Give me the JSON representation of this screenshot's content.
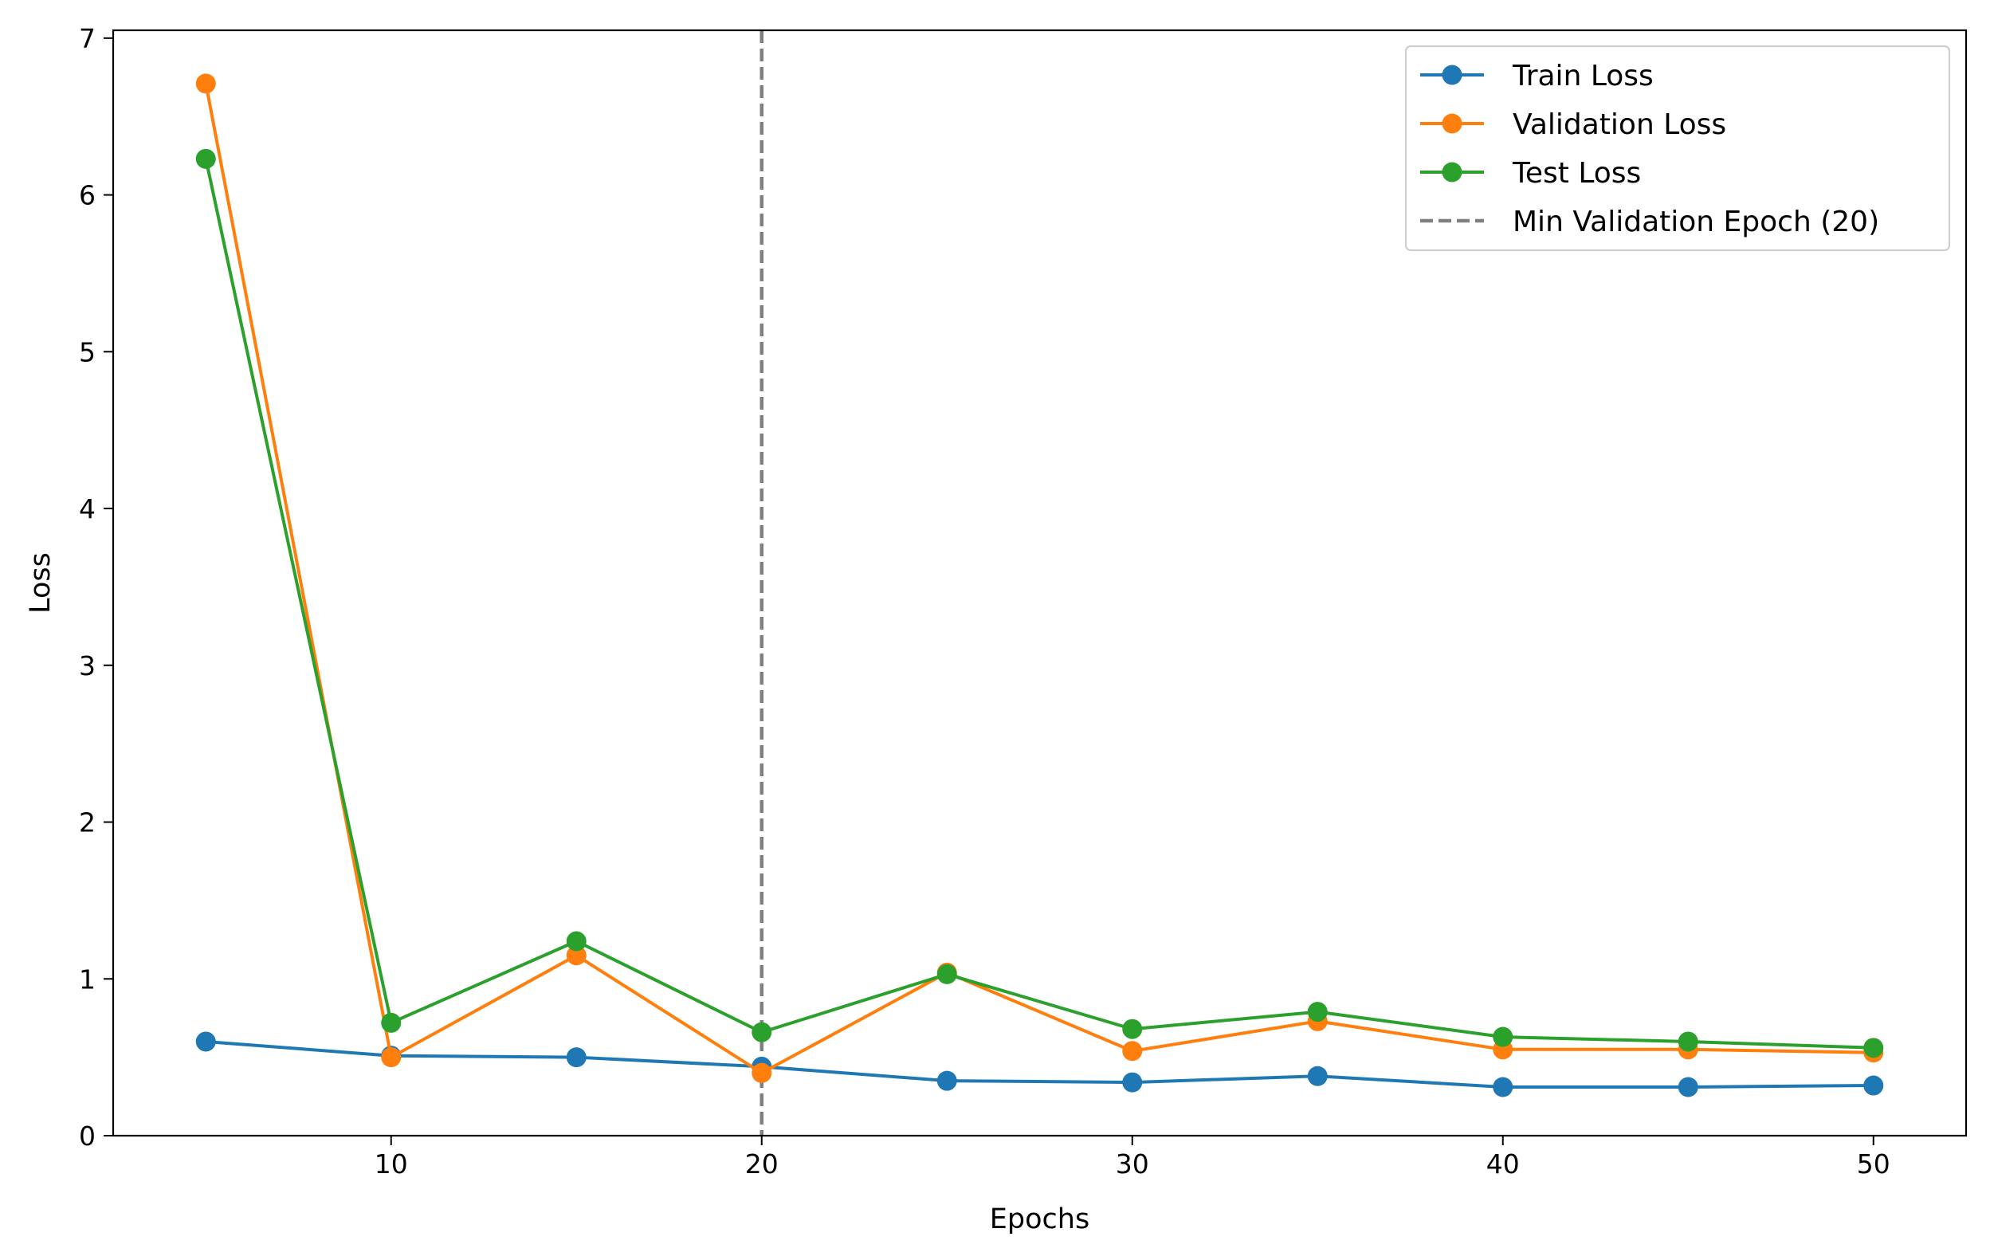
{
  "chart_data": {
    "type": "line",
    "xlabel": "Epochs",
    "ylabel": "Loss",
    "xlim": [
      2.5,
      52.5
    ],
    "ylim": [
      0,
      7.05
    ],
    "xticks": [
      10,
      20,
      30,
      40,
      50
    ],
    "yticks": [
      0,
      1,
      2,
      3,
      4,
      5,
      6,
      7
    ],
    "grid": false,
    "legend_position": "top-right",
    "x": [
      5,
      10,
      15,
      20,
      25,
      30,
      35,
      40,
      45,
      50
    ],
    "series": [
      {
        "name": "Train Loss",
        "color": "#1f77b4",
        "marker": "circle",
        "values": [
          0.6,
          0.51,
          0.5,
          0.44,
          0.35,
          0.34,
          0.38,
          0.31,
          0.31,
          0.32
        ]
      },
      {
        "name": "Validation Loss",
        "color": "#ff7f0e",
        "marker": "circle",
        "values": [
          6.71,
          0.5,
          1.15,
          0.4,
          1.04,
          0.54,
          0.73,
          0.55,
          0.55,
          0.53
        ]
      },
      {
        "name": "Test Loss",
        "color": "#2ca02c",
        "marker": "circle",
        "values": [
          6.23,
          0.72,
          1.24,
          0.66,
          1.03,
          0.68,
          0.79,
          0.63,
          0.6,
          0.56
        ]
      }
    ],
    "reference_line": {
      "name": "Min Validation Epoch (20)",
      "x": 20,
      "color": "#808080",
      "style": "dashed"
    }
  }
}
